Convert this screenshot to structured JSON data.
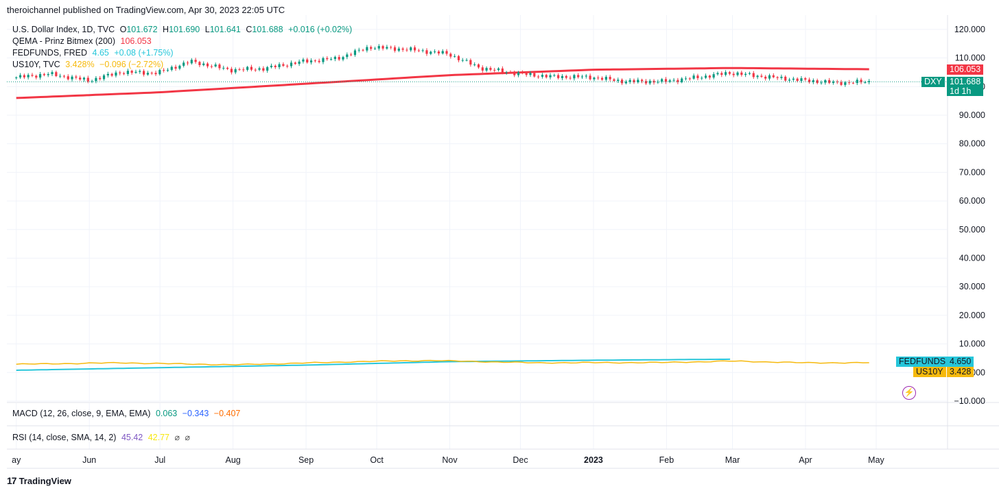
{
  "header": {
    "publisher_text": "theroichannel published on TradingView.com, Apr 30, 2023 22:05 UTC"
  },
  "legend": {
    "main": {
      "name": "U.S. Dollar Index, 1D, TVC",
      "o_label": "O",
      "o": "101.672",
      "h_label": "H",
      "h": "101.690",
      "l_label": "L",
      "l": "101.641",
      "c_label": "C",
      "c": "101.688",
      "change": "+0.016 (+0.02%)"
    },
    "qema": {
      "name": "QEMA - Prinz Bitmex (200)",
      "value": "106.053"
    },
    "fedfunds": {
      "name": "FEDFUNDS, FRED",
      "value": "4.65",
      "change": "+0.08 (+1.75%)"
    },
    "us10y": {
      "name": "US10Y, TVC",
      "value": "3.428%",
      "change": "−0.096 (−2.72%)"
    }
  },
  "panes": {
    "macd": {
      "name": "MACD (12, 26, close, 9, EMA, EMA)",
      "v1": "0.063",
      "v2": "−0.343",
      "v3": "−0.407"
    },
    "rsi": {
      "name": "RSI (14, close, SMA, 14, 2)",
      "v1": "45.42",
      "v2": "42.77",
      "v3": "⌀",
      "v4": "⌀"
    }
  },
  "badges": {
    "qema": {
      "value": "106.053",
      "color": "#f23645"
    },
    "dxy": {
      "label": "DXY",
      "value": "101.688",
      "countdown": "1d 1h",
      "color": "#089981"
    },
    "fedfunds": {
      "label": "FEDFUNDS",
      "value": "4.650",
      "color": "#26c6da"
    },
    "us10y": {
      "label": "US10Y",
      "value": "3.428",
      "color": "#f6b90d"
    }
  },
  "footer": {
    "logo_icon": "tradingview-logo-icon",
    "brand": "TradingView"
  },
  "colors": {
    "up": "#089981",
    "down": "#f23645",
    "qema": "#f23645",
    "fedfunds": "#26c6da",
    "us10y": "#f6b90d",
    "grid": "#f0f3fa"
  },
  "chart_data": {
    "type": "line",
    "x_tick_labels": [
      "ay",
      "Jun",
      "Jul",
      "Aug",
      "Sep",
      "Oct",
      "Nov",
      "Dec",
      "2023",
      "Feb",
      "Mar",
      "Apr",
      "May"
    ],
    "y_tick_labels": [
      "120.000",
      "110.000",
      "100.000",
      "90.000",
      "80.000",
      "70.000",
      "60.000",
      "50.000",
      "40.000",
      "30.000",
      "20.000",
      "10.000",
      "0.000",
      "−10.000"
    ],
    "ylim": [
      -10,
      125
    ],
    "series": [
      {
        "name": "DXY",
        "kind": "candles",
        "points": [
          [
            "2022-05-01",
            103.2
          ],
          [
            "2022-05-15",
            104.4
          ],
          [
            "2022-06-01",
            102.1
          ],
          [
            "2022-06-14",
            105.0
          ],
          [
            "2022-06-30",
            104.8
          ],
          [
            "2022-07-14",
            108.8
          ],
          [
            "2022-07-31",
            105.8
          ],
          [
            "2022-08-14",
            106.3
          ],
          [
            "2022-08-31",
            108.8
          ],
          [
            "2022-09-14",
            109.8
          ],
          [
            "2022-09-28",
            113.8
          ],
          [
            "2022-10-14",
            113.0
          ],
          [
            "2022-10-31",
            111.5
          ],
          [
            "2022-11-14",
            106.5
          ],
          [
            "2022-11-30",
            104.5
          ],
          [
            "2022-12-14",
            103.5
          ],
          [
            "2022-12-31",
            103.3
          ],
          [
            "2023-01-14",
            101.8
          ],
          [
            "2023-01-31",
            101.8
          ],
          [
            "2023-02-14",
            103.2
          ],
          [
            "2023-02-28",
            104.8
          ],
          [
            "2023-03-14",
            103.5
          ],
          [
            "2023-03-31",
            102.2
          ],
          [
            "2023-04-14",
            101.3
          ],
          [
            "2023-04-28",
            101.688
          ]
        ]
      },
      {
        "name": "QEMA - Prinz Bitmex (200)",
        "points": [
          [
            "2022-05-01",
            96.0
          ],
          [
            "2022-07-01",
            98.0
          ],
          [
            "2022-09-01",
            101.0
          ],
          [
            "2022-11-01",
            104.0
          ],
          [
            "2023-01-01",
            105.9
          ],
          [
            "2023-03-01",
            106.5
          ],
          [
            "2023-04-28",
            106.053
          ]
        ]
      },
      {
        "name": "FEDFUNDS, FRED",
        "points": [
          [
            "2022-05-01",
            0.8
          ],
          [
            "2022-07-01",
            1.7
          ],
          [
            "2022-09-01",
            2.6
          ],
          [
            "2022-11-01",
            3.8
          ],
          [
            "2023-01-01",
            4.3
          ],
          [
            "2023-02-28",
            4.65
          ]
        ]
      },
      {
        "name": "US10Y, TVC",
        "points": [
          [
            "2022-05-01",
            2.9
          ],
          [
            "2022-06-14",
            3.4
          ],
          [
            "2022-08-01",
            2.7
          ],
          [
            "2022-09-28",
            3.9
          ],
          [
            "2022-10-24",
            4.2
          ],
          [
            "2022-12-07",
            3.4
          ],
          [
            "2023-01-31",
            3.5
          ],
          [
            "2023-03-01",
            4.0
          ],
          [
            "2023-04-01",
            3.4
          ],
          [
            "2023-04-28",
            3.428
          ]
        ]
      }
    ]
  }
}
